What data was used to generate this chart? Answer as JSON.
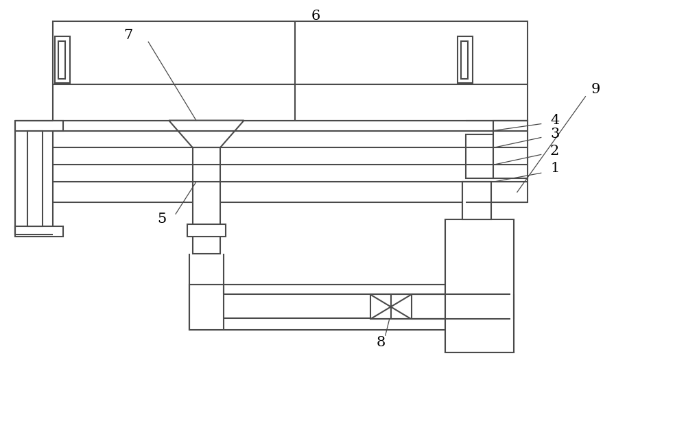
{
  "bg_color": "#ffffff",
  "line_color": "#4a4a4a",
  "line_width": 1.5,
  "figsize": [
    10.0,
    6.3
  ],
  "dpi": 100,
  "label_fontsize": 15
}
